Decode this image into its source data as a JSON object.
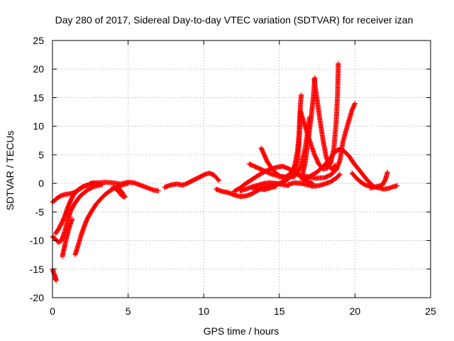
{
  "chart_data": {
    "type": "scatter",
    "title": "Day 280 of 2017, Sidereal Day-to-day VTEC variation (SDTVAR) for receiver izan",
    "xlabel": "GPS time / hours",
    "ylabel": "SDTVAR / TECUs",
    "xlim": [
      0,
      25
    ],
    "ylim": [
      -20,
      25
    ],
    "xticks": [
      "0",
      "5",
      "10",
      "15",
      "20",
      "25"
    ],
    "yticks": [
      "-20",
      "-15",
      "-10",
      "-5",
      "0",
      "5",
      "10",
      "15",
      "20",
      "25"
    ],
    "grid": true,
    "marker": "plus",
    "color": "#ff0000",
    "series": [
      {
        "name": "arc-a",
        "points": [
          [
            0.0,
            -3.3
          ],
          [
            0.3,
            -2.6
          ],
          [
            0.6,
            -2.1
          ],
          [
            0.9,
            -1.9
          ],
          [
            1.2,
            -1.8
          ],
          [
            1.5,
            -1.5
          ],
          [
            1.8,
            -1.0
          ],
          [
            2.1,
            -0.5
          ],
          [
            2.4,
            -0.2
          ],
          [
            2.7,
            0.1
          ],
          [
            3.0,
            0.0
          ]
        ]
      },
      {
        "name": "arc-b",
        "points": [
          [
            0.0,
            -9.3
          ],
          [
            0.2,
            -9.8
          ],
          [
            0.4,
            -10.3
          ],
          [
            0.6,
            -10.0
          ],
          [
            0.8,
            -8.5
          ],
          [
            1.0,
            -6.5
          ],
          [
            1.2,
            -4.8
          ],
          [
            1.5,
            -3.4
          ],
          [
            1.8,
            -2.3
          ],
          [
            2.1,
            -1.6
          ],
          [
            2.4,
            -1.0
          ],
          [
            2.7,
            -0.6
          ],
          [
            3.0,
            -0.4
          ],
          [
            3.3,
            -0.2
          ]
        ]
      },
      {
        "name": "arc-c",
        "points": [
          [
            0.2,
            -8.8
          ],
          [
            0.4,
            -8.0
          ],
          [
            0.6,
            -7.0
          ],
          [
            0.8,
            -5.8
          ],
          [
            1.0,
            -4.3
          ],
          [
            1.2,
            -3.0
          ],
          [
            1.4,
            -2.0
          ],
          [
            1.7,
            -1.1
          ],
          [
            2.0,
            -0.6
          ],
          [
            2.3,
            -0.3
          ]
        ]
      },
      {
        "name": "arc-d",
        "points": [
          [
            0.65,
            -12.8
          ],
          [
            0.75,
            -11.6
          ],
          [
            0.85,
            -10.4
          ],
          [
            0.95,
            -9.3
          ],
          [
            1.1,
            -7.8
          ],
          [
            1.3,
            -6.2
          ]
        ]
      },
      {
        "name": "arc-e",
        "points": [
          [
            0.0,
            -15.0
          ],
          [
            0.1,
            -15.8
          ],
          [
            0.2,
            -16.5
          ],
          [
            0.25,
            -17.0
          ],
          [
            0.15,
            -16.6
          ]
        ]
      },
      {
        "name": "arc-f",
        "points": [
          [
            1.5,
            -12.5
          ],
          [
            1.7,
            -10.8
          ],
          [
            1.9,
            -9.0
          ],
          [
            2.1,
            -7.5
          ],
          [
            2.3,
            -6.2
          ],
          [
            2.6,
            -4.8
          ],
          [
            2.9,
            -3.6
          ],
          [
            3.2,
            -2.7
          ],
          [
            3.5,
            -1.9
          ],
          [
            3.8,
            -1.3
          ],
          [
            4.1,
            -0.8
          ],
          [
            4.4,
            -0.5
          ],
          [
            4.7,
            -0.2
          ],
          [
            5.0,
            0.0
          ]
        ]
      },
      {
        "name": "arc-g",
        "points": [
          [
            4.0,
            -0.6
          ],
          [
            4.2,
            -1.0
          ],
          [
            4.4,
            -1.5
          ],
          [
            4.6,
            -2.2
          ],
          [
            4.8,
            -2.4
          ],
          [
            4.6,
            -1.6
          ],
          [
            4.4,
            -0.9
          ]
        ]
      },
      {
        "name": "arc-h",
        "points": [
          [
            2.5,
            0.0
          ],
          [
            3.0,
            0.1
          ],
          [
            3.5,
            0.2
          ],
          [
            4.0,
            0.1
          ],
          [
            4.5,
            -0.1
          ],
          [
            5.0,
            0.2
          ],
          [
            5.4,
            0.1
          ],
          [
            5.8,
            -0.3
          ],
          [
            6.1,
            -0.6
          ],
          [
            6.4,
            -0.9
          ],
          [
            6.7,
            -1.2
          ],
          [
            7.0,
            -1.3
          ]
        ]
      },
      {
        "name": "arc-i",
        "points": [
          [
            7.4,
            -0.7
          ],
          [
            7.8,
            -0.3
          ],
          [
            8.2,
            -0.1
          ],
          [
            8.6,
            -0.3
          ],
          [
            8.9,
            0.0
          ],
          [
            9.2,
            0.4
          ],
          [
            9.5,
            0.8
          ],
          [
            9.8,
            1.2
          ],
          [
            10.1,
            1.6
          ],
          [
            10.4,
            1.8
          ],
          [
            10.7,
            1.4
          ],
          [
            11.0,
            0.5
          ]
        ]
      },
      {
        "name": "arc-j",
        "points": [
          [
            10.8,
            -1.0
          ],
          [
            11.2,
            -1.4
          ],
          [
            11.6,
            -1.6
          ],
          [
            12.0,
            -2.0
          ],
          [
            12.4,
            -2.3
          ],
          [
            12.8,
            -2.2
          ],
          [
            13.2,
            -1.8
          ],
          [
            13.6,
            -1.2
          ],
          [
            14.0,
            -0.6
          ]
        ]
      },
      {
        "name": "arc-k",
        "points": [
          [
            12.4,
            -1.3
          ],
          [
            12.8,
            -1.0
          ],
          [
            13.2,
            -0.6
          ],
          [
            13.6,
            -0.3
          ],
          [
            14.0,
            0.0
          ],
          [
            14.4,
            0.1
          ],
          [
            14.8,
            0.0
          ],
          [
            15.2,
            -0.2
          ],
          [
            15.6,
            -0.4
          ]
        ]
      },
      {
        "name": "arc-l",
        "points": [
          [
            12.0,
            -1.4
          ],
          [
            12.4,
            -0.8
          ],
          [
            12.8,
            0.0
          ],
          [
            13.2,
            0.7
          ],
          [
            13.6,
            1.4
          ],
          [
            14.0,
            2.0
          ],
          [
            14.4,
            2.5
          ],
          [
            14.8,
            2.8
          ],
          [
            15.2,
            3.0
          ],
          [
            15.6,
            2.6
          ],
          [
            16.0,
            2.0
          ],
          [
            16.4,
            1.2
          ],
          [
            16.8,
            0.4
          ],
          [
            17.2,
            0.0
          ]
        ]
      },
      {
        "name": "arc-m",
        "points": [
          [
            13.8,
            6.2
          ],
          [
            14.0,
            5.0
          ],
          [
            14.2,
            3.8
          ],
          [
            14.5,
            2.6
          ],
          [
            14.8,
            1.7
          ],
          [
            15.1,
            1.2
          ],
          [
            15.4,
            1.1
          ],
          [
            15.7,
            1.6
          ],
          [
            16.0,
            3.0
          ],
          [
            16.2,
            5.6
          ],
          [
            16.3,
            8.5
          ],
          [
            16.35,
            11.5
          ],
          [
            16.4,
            14.0
          ],
          [
            16.45,
            15.5
          ]
        ]
      },
      {
        "name": "arc-n",
        "points": [
          [
            13.0,
            3.4
          ],
          [
            13.5,
            2.8
          ],
          [
            14.0,
            2.2
          ],
          [
            14.5,
            1.6
          ],
          [
            15.0,
            1.2
          ],
          [
            15.5,
            1.0
          ],
          [
            16.0,
            1.2
          ],
          [
            16.4,
            2.8
          ],
          [
            16.7,
            6.0
          ],
          [
            16.9,
            9.6
          ],
          [
            17.0,
            11.6
          ]
        ]
      },
      {
        "name": "arc-o",
        "points": [
          [
            14.0,
            -0.6
          ],
          [
            14.5,
            -0.4
          ],
          [
            15.0,
            0.0
          ],
          [
            15.5,
            0.6
          ],
          [
            16.0,
            1.8
          ],
          [
            16.2,
            4.0
          ],
          [
            16.3,
            7.0
          ],
          [
            16.35,
            10.0
          ],
          [
            16.4,
            12.8
          ]
        ]
      },
      {
        "name": "arc-p",
        "points": [
          [
            16.4,
            12.6
          ],
          [
            16.7,
            10.0
          ],
          [
            17.0,
            7.5
          ],
          [
            17.3,
            5.2
          ],
          [
            17.6,
            3.4
          ],
          [
            17.9,
            2.5
          ],
          [
            18.2,
            2.7
          ],
          [
            18.4,
            3.6
          ],
          [
            18.6,
            6.0
          ],
          [
            18.75,
            10.5
          ],
          [
            18.85,
            15.5
          ],
          [
            18.9,
            21.0
          ]
        ]
      },
      {
        "name": "arc-q",
        "points": [
          [
            16.5,
            1.2
          ],
          [
            16.7,
            3.5
          ],
          [
            16.9,
            7.5
          ],
          [
            17.1,
            11.5
          ],
          [
            17.25,
            15.2
          ],
          [
            17.35,
            18.5
          ]
        ]
      },
      {
        "name": "arc-r",
        "points": [
          [
            17.3,
            18.2
          ],
          [
            17.5,
            14.5
          ],
          [
            17.7,
            10.8
          ],
          [
            17.9,
            7.4
          ],
          [
            18.1,
            4.6
          ],
          [
            18.3,
            3.0
          ],
          [
            18.5,
            2.4
          ],
          [
            18.7,
            3.2
          ]
        ]
      },
      {
        "name": "arc-s",
        "points": [
          [
            15.6,
            -0.2
          ],
          [
            16.0,
            0.1
          ],
          [
            16.4,
            0.0
          ],
          [
            16.8,
            -0.2
          ],
          [
            17.2,
            -0.5
          ],
          [
            17.6,
            -0.4
          ],
          [
            18.0,
            -0.1
          ],
          [
            18.4,
            0.3
          ],
          [
            18.8,
            1.0
          ],
          [
            19.0,
            1.6
          ]
        ]
      },
      {
        "name": "arc-t",
        "points": [
          [
            16.5,
            0.6
          ],
          [
            17.0,
            1.2
          ],
          [
            17.5,
            2.0
          ],
          [
            18.0,
            3.2
          ],
          [
            18.4,
            4.5
          ],
          [
            18.7,
            5.6
          ],
          [
            19.0,
            6.0
          ],
          [
            19.3,
            5.6
          ],
          [
            19.6,
            4.8
          ],
          [
            19.9,
            3.6
          ],
          [
            20.2,
            2.6
          ],
          [
            20.5,
            1.6
          ],
          [
            20.8,
            0.6
          ],
          [
            21.1,
            -0.2
          ]
        ]
      },
      {
        "name": "arc-u",
        "points": [
          [
            16.2,
            1.6
          ],
          [
            16.8,
            1.2
          ],
          [
            17.4,
            0.9
          ],
          [
            18.0,
            1.0
          ],
          [
            18.4,
            1.5
          ],
          [
            18.8,
            2.5
          ]
        ]
      },
      {
        "name": "arc-v",
        "points": [
          [
            18.8,
            2.6
          ],
          [
            19.0,
            4.0
          ],
          [
            19.2,
            7.2
          ],
          [
            19.4,
            9.2
          ],
          [
            19.6,
            11.0
          ],
          [
            19.8,
            12.8
          ],
          [
            20.0,
            14.0
          ]
        ]
      },
      {
        "name": "arc-w",
        "points": [
          [
            19.8,
            1.8
          ],
          [
            20.1,
            0.9
          ],
          [
            20.4,
            0.2
          ],
          [
            20.7,
            -0.3
          ],
          [
            21.0,
            -0.5
          ],
          [
            21.3,
            -0.6
          ],
          [
            21.6,
            -0.8
          ],
          [
            21.9,
            -1.0
          ],
          [
            22.2,
            -0.9
          ],
          [
            22.5,
            -0.6
          ],
          [
            22.8,
            -0.4
          ]
        ]
      },
      {
        "name": "arc-x",
        "points": [
          [
            21.0,
            -0.8
          ],
          [
            21.4,
            -0.6
          ],
          [
            21.8,
            -0.3
          ],
          [
            22.0,
            0.6
          ],
          [
            22.1,
            1.5
          ],
          [
            22.15,
            2.0
          ]
        ]
      },
      {
        "name": "arc-y",
        "points": [
          [
            13.2,
            -0.8
          ],
          [
            13.6,
            -0.9
          ],
          [
            14.0,
            -1.1
          ],
          [
            14.4,
            -0.8
          ],
          [
            14.8,
            -0.5
          ]
        ]
      }
    ]
  }
}
